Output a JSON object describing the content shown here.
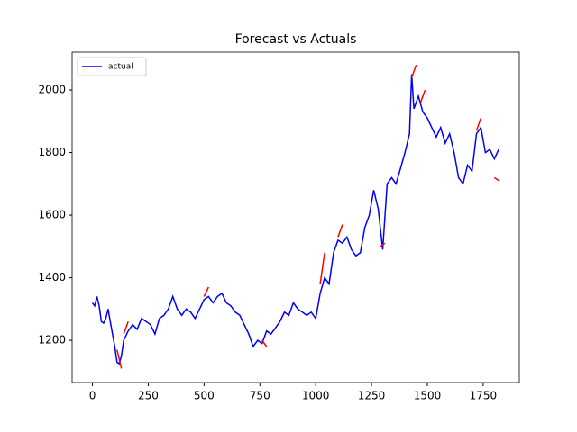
{
  "chart_data": {
    "type": "line",
    "title": "Forecast vs Actuals",
    "legend": "upper left",
    "xlim": [
      -91,
      1912
    ],
    "xticks": [
      0,
      250,
      500,
      750,
      1000,
      1250,
      1500,
      1750
    ],
    "ylim": [
      1065,
      2121
    ],
    "yticks": [
      1200,
      1400,
      1600,
      1800,
      2000
    ],
    "series": [
      {
        "name": "actual",
        "color": "#0000ff",
        "x": [
          0,
          10,
          20,
          30,
          40,
          50,
          60,
          70,
          80,
          90,
          100,
          110,
          120,
          130,
          140,
          160,
          180,
          200,
          220,
          240,
          260,
          280,
          300,
          320,
          340,
          360,
          380,
          400,
          420,
          440,
          460,
          480,
          500,
          520,
          540,
          560,
          580,
          600,
          620,
          640,
          660,
          680,
          700,
          720,
          740,
          760,
          780,
          800,
          820,
          840,
          860,
          880,
          900,
          920,
          940,
          960,
          980,
          1000,
          1020,
          1040,
          1060,
          1080,
          1100,
          1120,
          1140,
          1160,
          1180,
          1200,
          1220,
          1240,
          1260,
          1280,
          1300,
          1320,
          1340,
          1360,
          1380,
          1400,
          1420,
          1430,
          1440,
          1460,
          1480,
          1500,
          1520,
          1540,
          1560,
          1580,
          1600,
          1620,
          1640,
          1660,
          1680,
          1700,
          1720,
          1740,
          1760,
          1780,
          1800,
          1820
        ],
        "values": [
          1320,
          1310,
          1340,
          1310,
          1260,
          1255,
          1270,
          1300,
          1260,
          1220,
          1180,
          1130,
          1125,
          1150,
          1200,
          1230,
          1250,
          1235,
          1270,
          1260,
          1250,
          1220,
          1270,
          1280,
          1300,
          1340,
          1300,
          1280,
          1300,
          1290,
          1270,
          1300,
          1330,
          1340,
          1320,
          1340,
          1350,
          1320,
          1310,
          1290,
          1280,
          1250,
          1220,
          1180,
          1200,
          1190,
          1230,
          1220,
          1240,
          1260,
          1290,
          1280,
          1320,
          1300,
          1290,
          1280,
          1290,
          1270,
          1350,
          1400,
          1380,
          1480,
          1520,
          1510,
          1530,
          1490,
          1470,
          1480,
          1560,
          1600,
          1680,
          1620,
          1490,
          1700,
          1720,
          1700,
          1750,
          1800,
          1860,
          2050,
          1940,
          1980,
          1930,
          1910,
          1880,
          1850,
          1880,
          1830,
          1860,
          1800,
          1720,
          1700,
          1760,
          1740,
          1860,
          1880,
          1800,
          1810,
          1780,
          1810
        ]
      },
      {
        "color": "#ff0000",
        "x": [
          110,
          130,
          135,
          140,
          160,
          330,
          500,
          520,
          640,
          760,
          780,
          900,
          1020,
          1040,
          1070,
          1100,
          1120,
          1200,
          1290,
          1310,
          1370,
          1430,
          1450,
          1460,
          1470,
          1490,
          1600,
          1720,
          1740,
          1770,
          1800,
          1820
        ],
        "values": [
          1170,
          1110,
          null,
          1220,
          1260,
          null,
          1340,
          1370,
          null,
          1200,
          1180,
          null,
          1380,
          1480,
          null,
          1530,
          1570,
          null,
          1500,
          1510,
          null,
          2040,
          2080,
          null,
          1960,
          2000,
          null,
          1870,
          1910,
          null,
          1720,
          1710
        ]
      }
    ]
  }
}
